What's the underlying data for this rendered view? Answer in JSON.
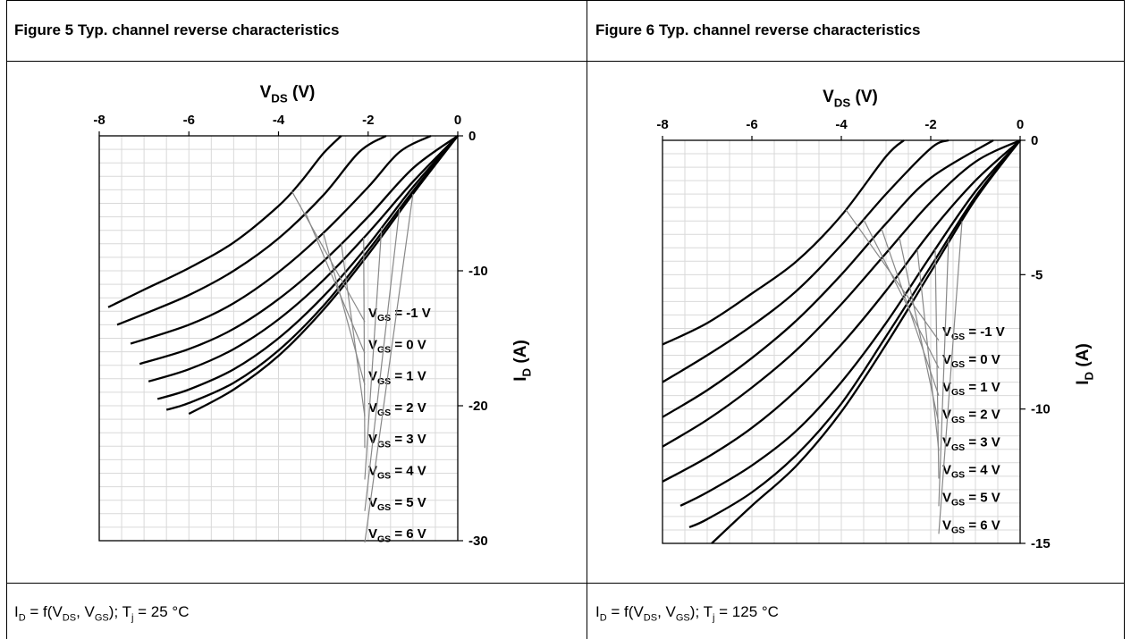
{
  "figures": [
    {
      "header": "Figure 5 Typ. channel reverse characteristics",
      "caption": {
        "i": "I",
        "i_sub": "D",
        "eq": " = f(V",
        "vds_sub": "DS",
        "comma": ", V",
        "vgs_sub": "GS",
        "tail": "); T",
        "tj_sub": "j",
        "temp": " = 25 °C"
      },
      "x_title": {
        "main": "V",
        "sub": "DS",
        "unit": " (V)"
      },
      "y_title": {
        "main": "I",
        "sub": "D",
        "unit": " (A)"
      },
      "x_ticks": [
        "-8",
        "-6",
        "-4",
        "-2",
        "0"
      ],
      "y_ticks": [
        "0",
        "-10",
        "-20",
        "-30"
      ],
      "legend": [
        {
          "main": "V",
          "sub": "GS",
          "text": " = -1 V"
        },
        {
          "main": "V",
          "sub": "GS",
          "text": " = 0 V"
        },
        {
          "main": "V",
          "sub": "GS",
          "text": " = 1 V"
        },
        {
          "main": "V",
          "sub": "GS",
          "text": " = 2 V"
        },
        {
          "main": "V",
          "sub": "GS",
          "text": " = 3 V"
        },
        {
          "main": "V",
          "sub": "GS",
          "text": " = 4 V"
        },
        {
          "main": "V",
          "sub": "GS",
          "text": " = 5 V"
        },
        {
          "main": "V",
          "sub": "GS",
          "text": " = 6 V"
        }
      ]
    },
    {
      "header": "Figure 6 Typ. channel reverse characteristics",
      "caption": {
        "i": "I",
        "i_sub": "D",
        "eq": " = f(V",
        "vds_sub": "DS",
        "comma": ", V",
        "vgs_sub": "GS",
        "tail": "); T",
        "tj_sub": "j",
        "temp": " = 125 °C"
      },
      "x_title": {
        "main": "V",
        "sub": "DS",
        "unit": " (V)"
      },
      "y_title": {
        "main": "I",
        "sub": "D",
        "unit": " (A)"
      },
      "x_ticks": [
        "-8",
        "-6",
        "-4",
        "-2",
        "0"
      ],
      "y_ticks": [
        "0",
        "-5",
        "-10",
        "-15"
      ],
      "legend": [
        {
          "main": "V",
          "sub": "GS",
          "text": " = -1 V"
        },
        {
          "main": "V",
          "sub": "GS",
          "text": " = 0 V"
        },
        {
          "main": "V",
          "sub": "GS",
          "text": " = 1 V"
        },
        {
          "main": "V",
          "sub": "GS",
          "text": " = 2 V"
        },
        {
          "main": "V",
          "sub": "GS",
          "text": " = 3 V"
        },
        {
          "main": "V",
          "sub": "GS",
          "text": " = 4 V"
        },
        {
          "main": "V",
          "sub": "GS",
          "text": " = 5 V"
        },
        {
          "main": "V",
          "sub": "GS",
          "text": " = 6 V"
        }
      ]
    }
  ],
  "chart_data": [
    {
      "type": "line",
      "title": "Figure 5 Typ. channel reverse characteristics",
      "xlabel": "VDS (V)",
      "ylabel": "ID (A)",
      "xlim": [
        -8,
        0
      ],
      "ylim": [
        -30,
        0
      ],
      "x_axis_position": "top",
      "y_axis_position": "right",
      "grid": true,
      "series": [
        {
          "name": "VGS = -1 V",
          "points": [
            [
              -7.8,
              -12.7
            ],
            [
              -7,
              -11.4
            ],
            [
              -6,
              -9.8
            ],
            [
              -5,
              -7.9
            ],
            [
              -4,
              -5.2
            ],
            [
              -3.5,
              -3.4
            ],
            [
              -3,
              -1.3
            ],
            [
              -2.6,
              0
            ]
          ]
        },
        {
          "name": "VGS = 0 V",
          "points": [
            [
              -7.6,
              -14.0
            ],
            [
              -7,
              -13.2
            ],
            [
              -6,
              -11.8
            ],
            [
              -5,
              -10.0
            ],
            [
              -4,
              -7.6
            ],
            [
              -3,
              -4.4
            ],
            [
              -2.2,
              -1.2
            ],
            [
              -1.6,
              0
            ]
          ]
        },
        {
          "name": "VGS = 1 V",
          "points": [
            [
              -7.3,
              -15.4
            ],
            [
              -6,
              -14.0
            ],
            [
              -5,
              -12.4
            ],
            [
              -4,
              -10.1
            ],
            [
              -3,
              -7.2
            ],
            [
              -2,
              -3.8
            ],
            [
              -1.3,
              -1.2
            ],
            [
              -0.6,
              0
            ]
          ]
        },
        {
          "name": "VGS = 2 V",
          "points": [
            [
              -7.1,
              -16.9
            ],
            [
              -6,
              -15.8
            ],
            [
              -5,
              -14.3
            ],
            [
              -4,
              -12.1
            ],
            [
              -3,
              -9.3
            ],
            [
              -2,
              -6.0
            ],
            [
              -1,
              -2.4
            ],
            [
              0,
              0
            ]
          ]
        },
        {
          "name": "VGS = 3 V",
          "points": [
            [
              -6.9,
              -18.2
            ],
            [
              -6,
              -17.3
            ],
            [
              -5,
              -15.8
            ],
            [
              -4,
              -13.6
            ],
            [
              -3,
              -10.7
            ],
            [
              -2,
              -7.2
            ],
            [
              -1,
              -3.4
            ],
            [
              0,
              0
            ]
          ]
        },
        {
          "name": "VGS = 4 V",
          "points": [
            [
              -6.7,
              -19.5
            ],
            [
              -6,
              -18.8
            ],
            [
              -5,
              -17.3
            ],
            [
              -4,
              -15.0
            ],
            [
              -3,
              -11.9
            ],
            [
              -2,
              -8.1
            ],
            [
              -1,
              -3.8
            ],
            [
              0,
              0
            ]
          ]
        },
        {
          "name": "VGS = 5 V",
          "points": [
            [
              -6.5,
              -20.3
            ],
            [
              -6,
              -19.8
            ],
            [
              -5,
              -18.3
            ],
            [
              -4,
              -15.9
            ],
            [
              -3,
              -12.6
            ],
            [
              -2,
              -8.5
            ],
            [
              -1,
              -4.1
            ],
            [
              0,
              0
            ]
          ]
        },
        {
          "name": "VGS = 6 V",
          "points": [
            [
              -6.0,
              -20.6
            ],
            [
              -5,
              -18.8
            ],
            [
              -4,
              -16.3
            ],
            [
              -3,
              -12.9
            ],
            [
              -2,
              -8.8
            ],
            [
              -1,
              -4.3
            ],
            [
              0,
              0
            ]
          ]
        }
      ]
    },
    {
      "type": "line",
      "title": "Figure 6 Typ. channel reverse characteristics",
      "xlabel": "VDS (V)",
      "ylabel": "ID (A)",
      "xlim": [
        -8,
        0
      ],
      "ylim": [
        -15,
        0
      ],
      "x_axis_position": "top",
      "y_axis_position": "right",
      "grid": true,
      "series": [
        {
          "name": "VGS = -1 V",
          "points": [
            [
              -8,
              -7.6
            ],
            [
              -7,
              -6.8
            ],
            [
              -6,
              -5.7
            ],
            [
              -5,
              -4.5
            ],
            [
              -4,
              -2.8
            ],
            [
              -3,
              -0.6
            ],
            [
              -2.6,
              0
            ]
          ]
        },
        {
          "name": "VGS = 0 V",
          "points": [
            [
              -8,
              -9.0
            ],
            [
              -7,
              -8.0
            ],
            [
              -6,
              -6.9
            ],
            [
              -5,
              -5.6
            ],
            [
              -4,
              -3.9
            ],
            [
              -3,
              -2.0
            ],
            [
              -2,
              -0.3
            ],
            [
              -1.6,
              0
            ]
          ]
        },
        {
          "name": "VGS = 1 V",
          "points": [
            [
              -8,
              -10.3
            ],
            [
              -7,
              -9.3
            ],
            [
              -6,
              -8.1
            ],
            [
              -5,
              -6.7
            ],
            [
              -4,
              -5.0
            ],
            [
              -3,
              -3.1
            ],
            [
              -2,
              -1.4
            ],
            [
              -0.6,
              0
            ]
          ]
        },
        {
          "name": "VGS = 2 V",
          "points": [
            [
              -8,
              -11.4
            ],
            [
              -7,
              -10.4
            ],
            [
              -6,
              -9.2
            ],
            [
              -5,
              -7.8
            ],
            [
              -4,
              -6.1
            ],
            [
              -3,
              -4.2
            ],
            [
              -2,
              -2.3
            ],
            [
              -1,
              -0.8
            ],
            [
              0,
              0
            ]
          ]
        },
        {
          "name": "VGS = 3 V",
          "points": [
            [
              -8,
              -12.7
            ],
            [
              -7,
              -11.8
            ],
            [
              -6,
              -10.7
            ],
            [
              -5,
              -9.3
            ],
            [
              -4,
              -7.6
            ],
            [
              -3,
              -5.6
            ],
            [
              -2,
              -3.4
            ],
            [
              -1,
              -1.5
            ],
            [
              0,
              0
            ]
          ]
        },
        {
          "name": "VGS = 4 V",
          "points": [
            [
              -7.6,
              -13.6
            ],
            [
              -7,
              -13.1
            ],
            [
              -6,
              -12.1
            ],
            [
              -5,
              -10.8
            ],
            [
              -4,
              -9.0
            ],
            [
              -3,
              -6.8
            ],
            [
              -2,
              -4.3
            ],
            [
              -1,
              -1.9
            ],
            [
              0,
              0
            ]
          ]
        },
        {
          "name": "VGS = 5 V",
          "points": [
            [
              -7.4,
              -14.4
            ],
            [
              -7,
              -14.1
            ],
            [
              -6,
              -13.1
            ],
            [
              -5,
              -11.7
            ],
            [
              -4,
              -9.8
            ],
            [
              -3,
              -7.3
            ],
            [
              -2,
              -4.7
            ],
            [
              -1,
              -2.1
            ],
            [
              0,
              0
            ]
          ]
        },
        {
          "name": "VGS = 6 V",
          "points": [
            [
              -6.9,
              -15.0
            ],
            [
              -6,
              -13.6
            ],
            [
              -5,
              -12.1
            ],
            [
              -4,
              -10.1
            ],
            [
              -3,
              -7.6
            ],
            [
              -2,
              -4.9
            ],
            [
              -1,
              -2.2
            ],
            [
              0,
              0
            ]
          ]
        }
      ]
    }
  ]
}
